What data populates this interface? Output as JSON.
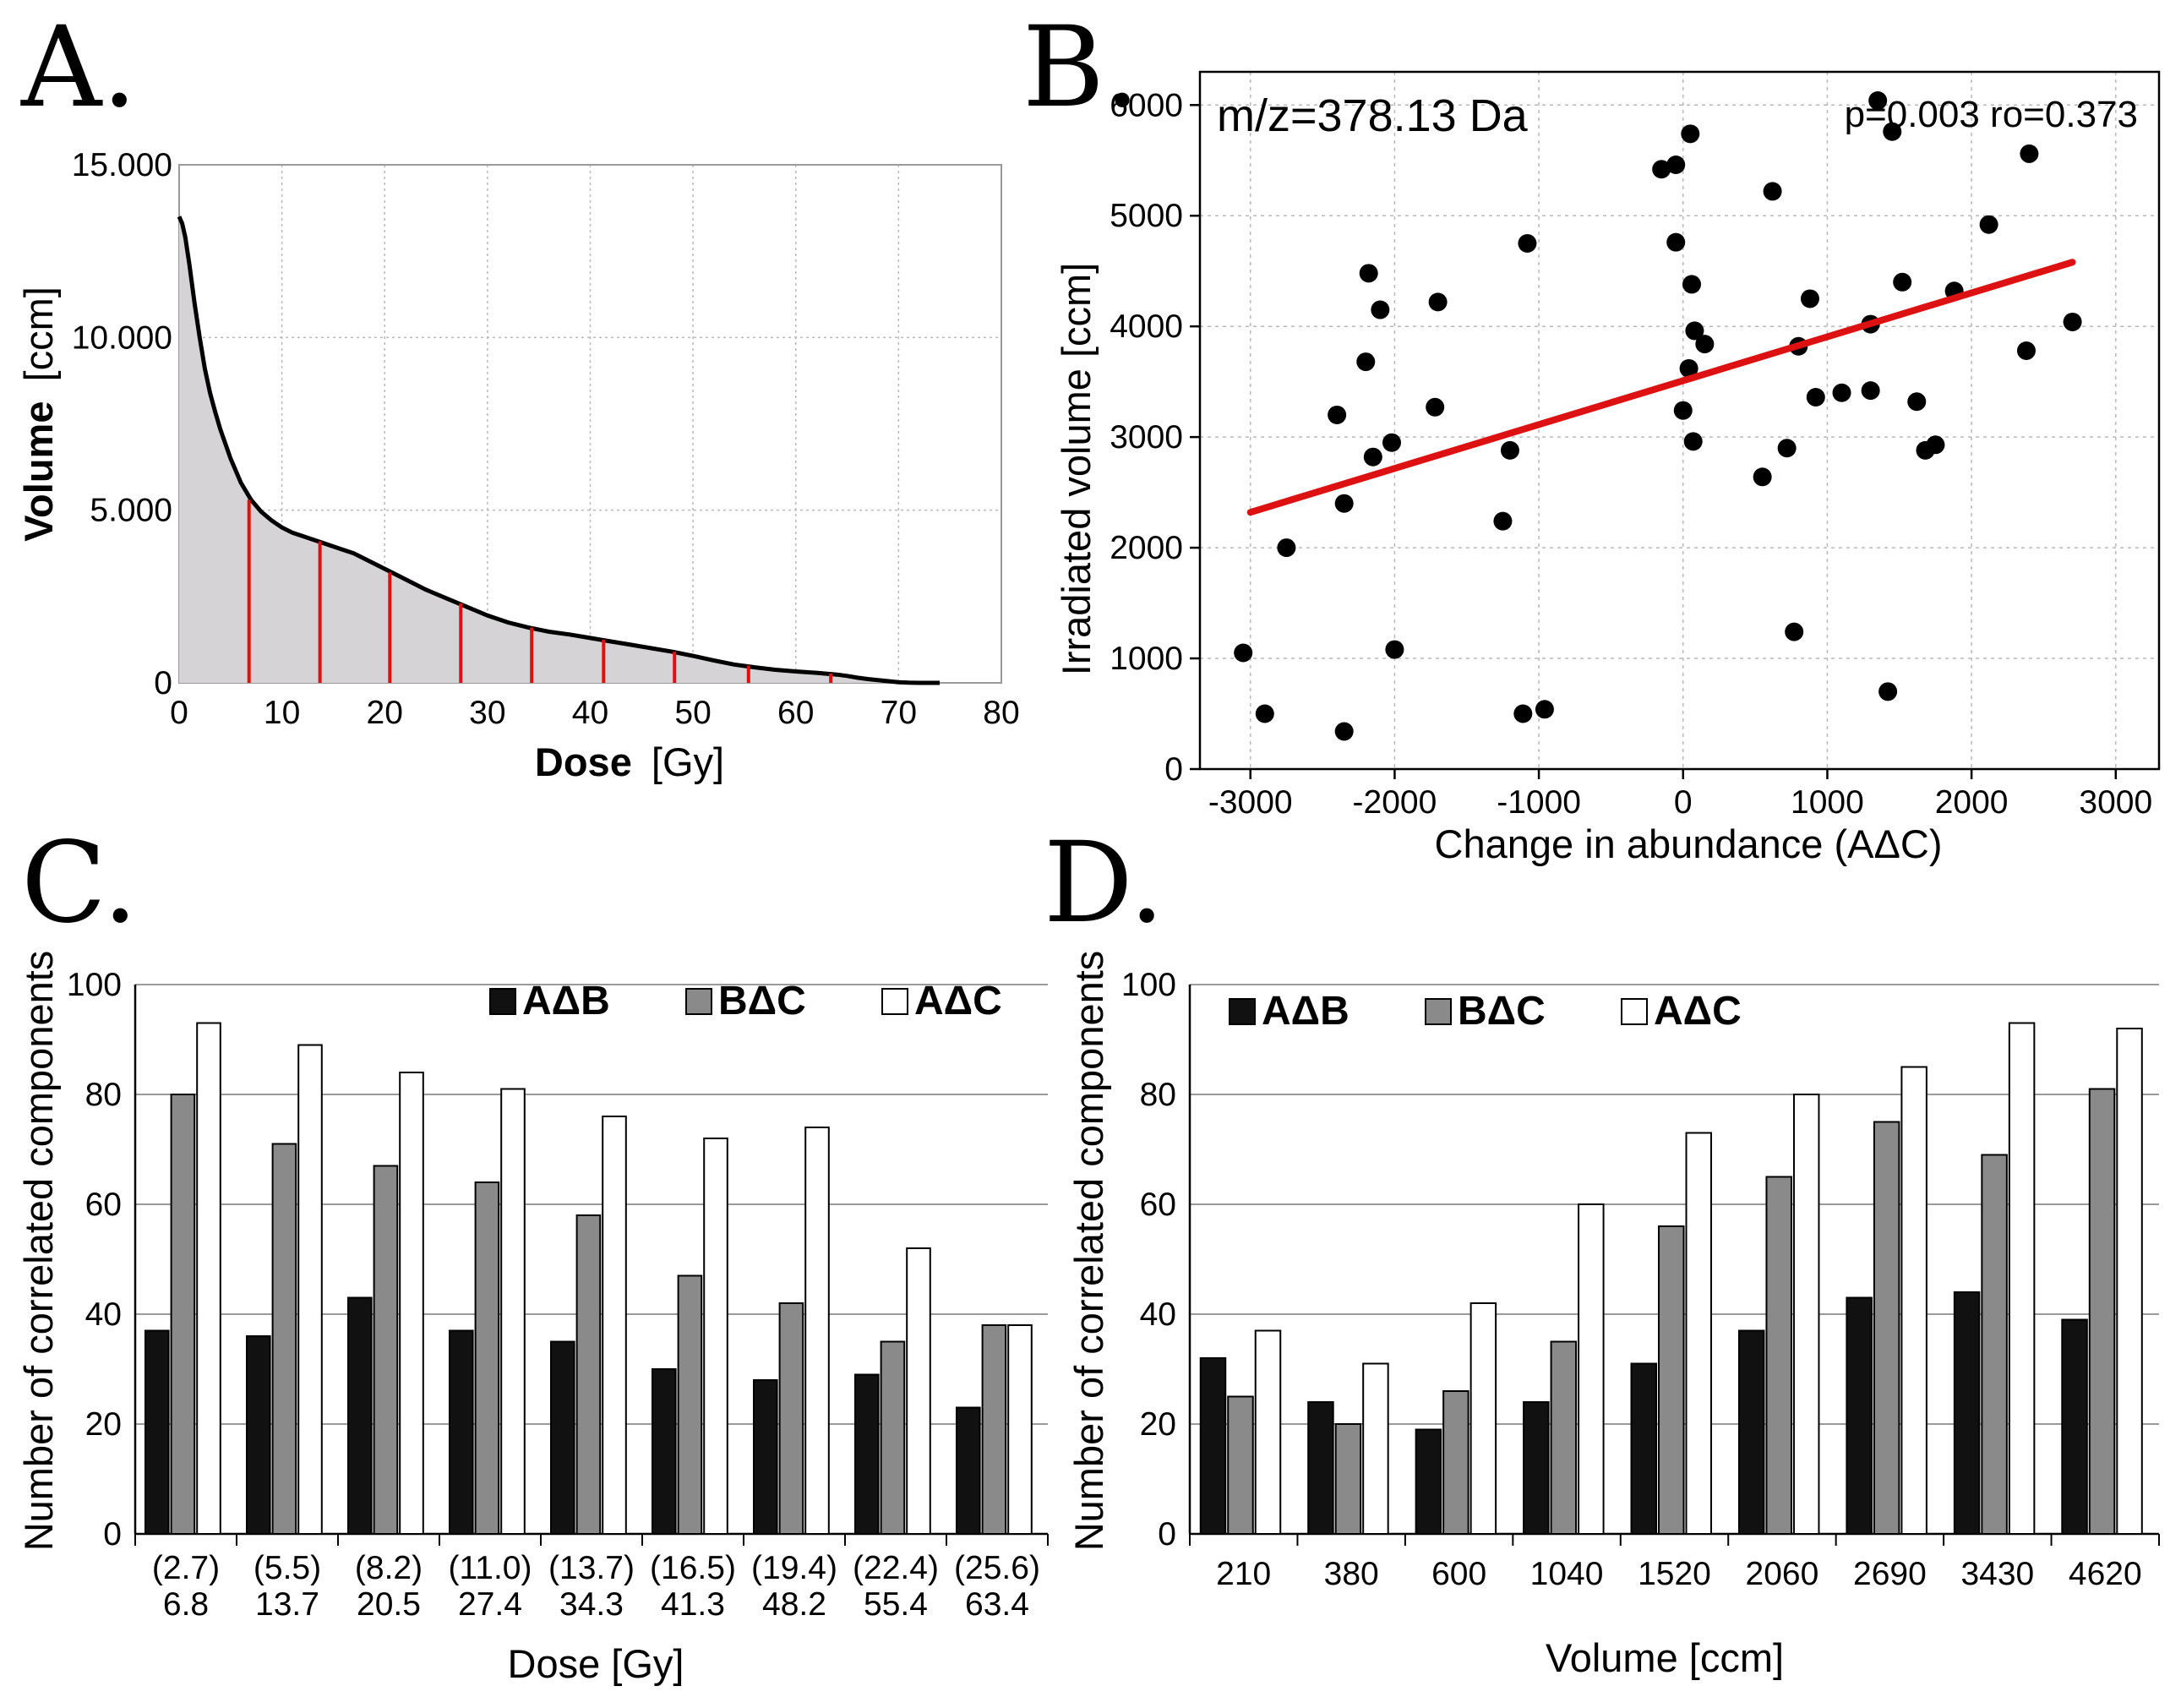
{
  "colors": {
    "dvh_fill": "#d6d3d6",
    "dvh_line": "#000000",
    "marker": "#e01010",
    "regression": "#dd1111",
    "bar_AB": "#111111",
    "bar_BC": "#8a8a8a",
    "bar_AC": "#ffffff"
  },
  "chart_data": [
    {
      "panel": "A.",
      "type": "area",
      "title": "",
      "xlabel_bold": "Dose",
      "xlabel_unit": "[Gy]",
      "ylabel_bold": "Volume",
      "ylabel_unit": "[ccm]",
      "xlim": [
        0,
        80
      ],
      "ylim": [
        0,
        15000
      ],
      "xticks": [
        0,
        10,
        20,
        30,
        40,
        50,
        60,
        70,
        80
      ],
      "yticks": [
        0,
        5000,
        10000,
        15000
      ],
      "ytick_labels": [
        "0",
        "5.000",
        "10.000",
        "15.000"
      ],
      "grid": true,
      "curve": {
        "x": [
          0,
          0.3,
          0.6,
          1,
          1.5,
          2,
          2.5,
          3,
          3.5,
          4,
          5,
          6,
          7,
          8,
          9,
          10,
          11,
          12,
          13,
          14,
          15,
          16,
          17,
          18,
          19,
          20,
          22,
          24,
          26,
          28,
          30,
          32,
          34,
          36,
          38,
          40,
          42,
          44,
          46,
          48,
          50,
          52,
          54,
          56,
          58,
          60,
          62,
          64,
          65,
          66,
          67,
          68,
          69,
          70,
          71,
          72,
          73,
          74
        ],
        "y": [
          13500,
          13300,
          12900,
          12100,
          11000,
          10000,
          9100,
          8400,
          7850,
          7350,
          6500,
          5800,
          5300,
          4950,
          4700,
          4500,
          4350,
          4250,
          4150,
          4050,
          3950,
          3850,
          3750,
          3600,
          3450,
          3300,
          3000,
          2700,
          2450,
          2200,
          1950,
          1750,
          1600,
          1480,
          1400,
          1300,
          1200,
          1100,
          1000,
          900,
          780,
          650,
          530,
          450,
          380,
          330,
          290,
          240,
          200,
          150,
          110,
          80,
          50,
          20,
          5,
          0,
          0,
          0
        ]
      },
      "markers": [
        {
          "x": 6.8,
          "y": 5300
        },
        {
          "x": 13.7,
          "y": 4100
        },
        {
          "x": 20.5,
          "y": 3200
        },
        {
          "x": 27.4,
          "y": 2300
        },
        {
          "x": 34.3,
          "y": 1600
        },
        {
          "x": 41.3,
          "y": 1250
        },
        {
          "x": 48.2,
          "y": 900
        },
        {
          "x": 55.4,
          "y": 500
        },
        {
          "x": 63.4,
          "y": 270
        }
      ]
    },
    {
      "panel": "B.",
      "type": "scatter",
      "annotation_left": "m/z=378.13 Da",
      "annotation_right": "p=0.003 ro=0.373",
      "xlabel": "Change in abundance (AΔC)",
      "ylabel": "Irradiated volume [ccm]",
      "xlim": [
        -3350,
        3300
      ],
      "ylim": [
        0,
        6300
      ],
      "xticks": [
        -3000,
        -2000,
        -1000,
        0,
        1000,
        2000,
        3000
      ],
      "yticks": [
        0,
        1000,
        2000,
        3000,
        4000,
        5000,
        6000
      ],
      "grid": true,
      "points": [
        [
          -3050,
          1050
        ],
        [
          -2900,
          500
        ],
        [
          -2750,
          2000
        ],
        [
          -2400,
          3200
        ],
        [
          -2350,
          340
        ],
        [
          -2350,
          2400
        ],
        [
          -2200,
          3680
        ],
        [
          -2180,
          4480
        ],
        [
          -2150,
          2820
        ],
        [
          -2100,
          4150
        ],
        [
          -2020,
          2950
        ],
        [
          -2000,
          1080
        ],
        [
          -1700,
          4220
        ],
        [
          -1720,
          3270
        ],
        [
          -1250,
          2240
        ],
        [
          -1200,
          2880
        ],
        [
          -1110,
          500
        ],
        [
          -1080,
          4750
        ],
        [
          -960,
          540
        ],
        [
          -150,
          5420
        ],
        [
          -50,
          5460
        ],
        [
          -50,
          4760
        ],
        [
          0,
          3240
        ],
        [
          40,
          3620
        ],
        [
          50,
          5740
        ],
        [
          60,
          4380
        ],
        [
          70,
          2960
        ],
        [
          80,
          3960
        ],
        [
          150,
          3840
        ],
        [
          550,
          2640
        ],
        [
          620,
          5220
        ],
        [
          720,
          2900
        ],
        [
          770,
          1240
        ],
        [
          800,
          3820
        ],
        [
          880,
          4250
        ],
        [
          920,
          3360
        ],
        [
          1100,
          3400
        ],
        [
          1300,
          4020
        ],
        [
          1300,
          3420
        ],
        [
          1350,
          6040
        ],
        [
          1420,
          700
        ],
        [
          1450,
          5760
        ],
        [
          1520,
          4400
        ],
        [
          1620,
          3320
        ],
        [
          1680,
          2880
        ],
        [
          1750,
          2930
        ],
        [
          1880,
          4320
        ],
        [
          2120,
          4920
        ],
        [
          2380,
          3780
        ],
        [
          2400,
          5560
        ],
        [
          2700,
          4040
        ]
      ],
      "regression": {
        "x0": -3000,
        "y0": 2320,
        "x1": 2700,
        "y1": 4580
      }
    },
    {
      "panel": "C.",
      "type": "bar",
      "xlabel": "Dose [Gy]",
      "ylabel": "Number of correlated components",
      "ylim": [
        0,
        100
      ],
      "yticks": [
        0,
        20,
        40,
        60,
        80,
        100
      ],
      "categories": [
        "6.8",
        "13.7",
        "20.5",
        "27.4",
        "34.3",
        "41.3",
        "48.2",
        "55.4",
        "63.4"
      ],
      "category_sublabels": [
        "(2.7)",
        "(5.5)",
        "(8.2)",
        "(11.0)",
        "(13.7)",
        "(16.5)",
        "(19.4)",
        "(22.4)",
        "(25.6)"
      ],
      "legend": [
        "AΔB",
        "BΔC",
        "AΔC"
      ],
      "legend_position": "top-right",
      "series": [
        {
          "name": "AΔB",
          "values": [
            37,
            36,
            43,
            37,
            35,
            30,
            28,
            29,
            23
          ]
        },
        {
          "name": "BΔC",
          "values": [
            80,
            71,
            67,
            64,
            58,
            47,
            42,
            35,
            38
          ]
        },
        {
          "name": "AΔC",
          "values": [
            93,
            89,
            84,
            81,
            76,
            72,
            74,
            52,
            38
          ]
        }
      ]
    },
    {
      "panel": "D.",
      "type": "bar",
      "xlabel": "Volume [ccm]",
      "ylabel": "Number of correlated components",
      "ylim": [
        0,
        100
      ],
      "yticks": [
        0,
        20,
        40,
        60,
        80,
        100
      ],
      "categories": [
        "210",
        "380",
        "600",
        "1040",
        "1520",
        "2060",
        "2690",
        "3430",
        "4620"
      ],
      "legend": [
        "AΔB",
        "BΔC",
        "AΔC"
      ],
      "legend_position": "top-left",
      "series": [
        {
          "name": "AΔB",
          "values": [
            32,
            24,
            19,
            24,
            31,
            37,
            43,
            44,
            39
          ]
        },
        {
          "name": "BΔC",
          "values": [
            25,
            20,
            26,
            35,
            56,
            65,
            75,
            69,
            81
          ]
        },
        {
          "name": "AΔC",
          "values": [
            37,
            31,
            42,
            60,
            73,
            80,
            85,
            93,
            92
          ]
        }
      ]
    }
  ]
}
